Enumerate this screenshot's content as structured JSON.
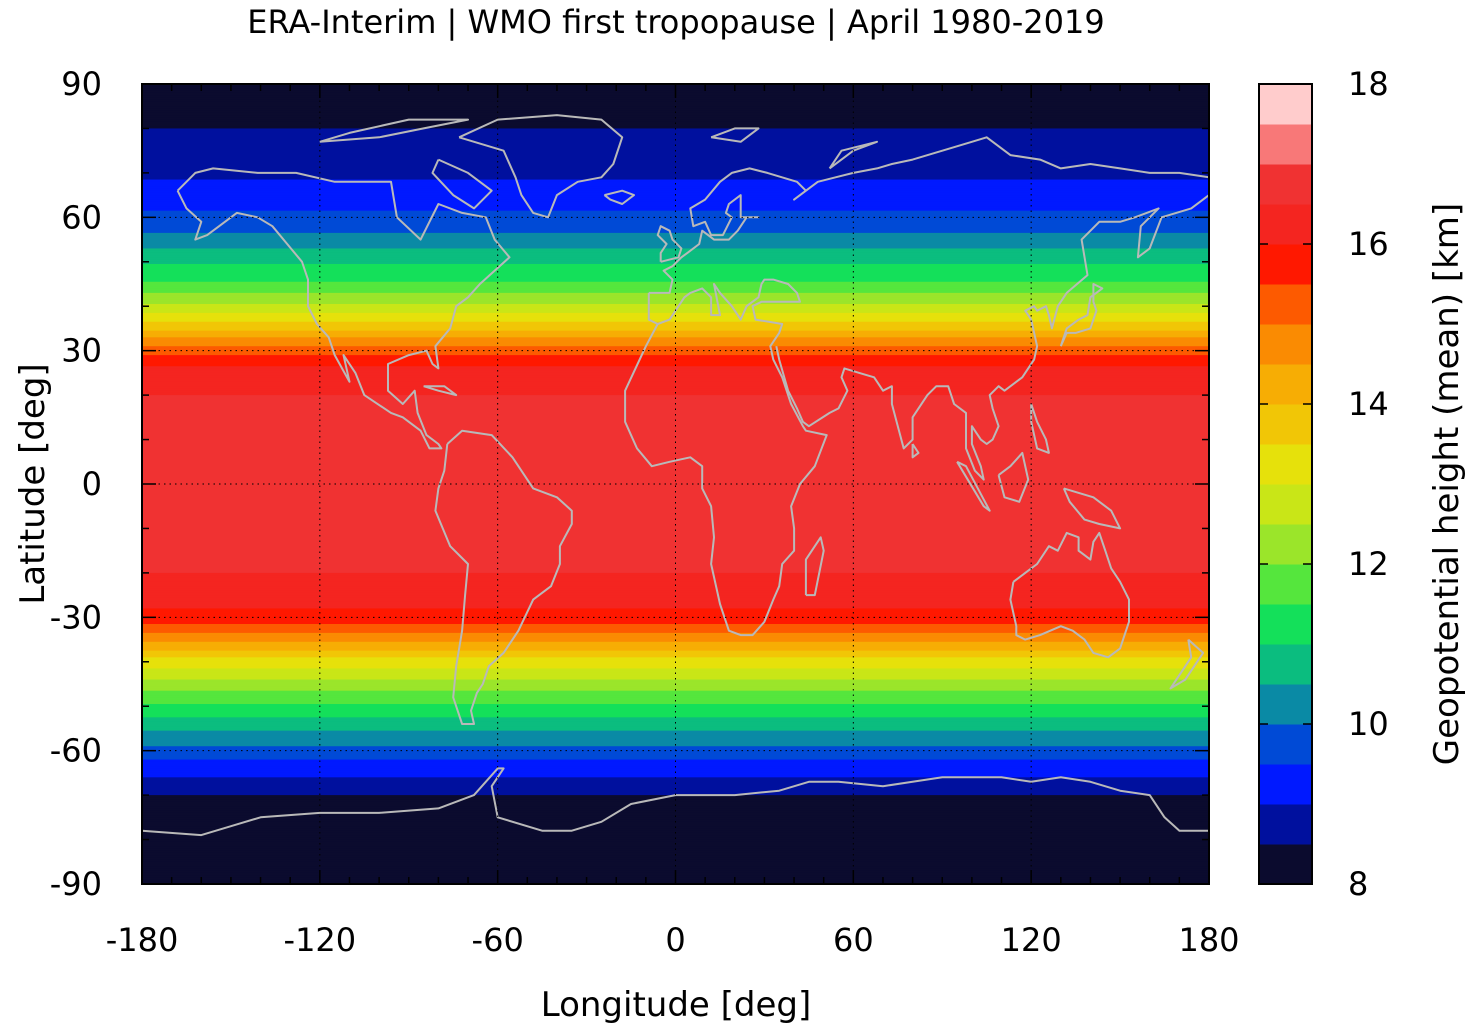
{
  "title": "ERA-Interim | WMO first tropopause | April 1980-2019",
  "chart_data": {
    "type": "heatmap",
    "title": "ERA-Interim | WMO first tropopause | April 1980-2019",
    "xlabel": "Longitude [deg]",
    "ylabel": "Latitude [deg]",
    "xlim": [
      -180,
      180
    ],
    "ylim": [
      -90,
      90
    ],
    "x_ticks": [
      -180,
      -120,
      -60,
      0,
      60,
      120,
      180
    ],
    "y_ticks": [
      90,
      60,
      30,
      0,
      -30,
      -60,
      -90
    ],
    "x_tick_labels": [
      "-180",
      "-120",
      "-60",
      "0",
      "60",
      "120",
      "180"
    ],
    "y_tick_labels": [
      "90",
      "60",
      "30",
      "0",
      "-30",
      "-60",
      "-90"
    ],
    "grid": true,
    "colorbar": {
      "label": "Geopotential height (mean) [km]",
      "range": [
        8,
        18
      ],
      "ticks": [
        8,
        10,
        12,
        14,
        16,
        18
      ],
      "tick_labels": [
        "8",
        "10",
        "12",
        "14",
        "16",
        "18"
      ],
      "colors": [
        "#0b0b2e",
        "#00109e",
        "#0019ff",
        "#004ad6",
        "#0a8aa5",
        "#0bbd7f",
        "#14e05a",
        "#55e63d",
        "#9be52a",
        "#c9e617",
        "#e6e10b",
        "#f1c606",
        "#f7ad04",
        "#fa8b02",
        "#fd5a00",
        "#ff1800",
        "#f42520",
        "#f03232",
        "#f87878",
        "#ffcccc"
      ]
    },
    "profile": {
      "description_units": "zonal-mean tropopause height (km) by latitude (deg)",
      "lat": [
        -90,
        -80,
        -70,
        -65,
        -60,
        -55,
        -50,
        -45,
        -40,
        -35,
        -30,
        -25,
        -20,
        -10,
        0,
        10,
        20,
        25,
        30,
        35,
        40,
        45,
        50,
        55,
        60,
        65,
        70,
        75,
        80,
        90
      ],
      "height_km": [
        8.0,
        8.1,
        8.5,
        9.1,
        9.8,
        10.6,
        11.4,
        12.3,
        13.3,
        14.6,
        15.8,
        16.3,
        16.5,
        16.5,
        16.5,
        16.5,
        16.5,
        16.3,
        15.3,
        13.9,
        12.6,
        11.6,
        10.9,
        10.2,
        9.6,
        9.2,
        8.9,
        8.7,
        8.5,
        8.0
      ]
    }
  },
  "colors": {
    "coastline": "#b9b9b9",
    "background": "#ffffff"
  }
}
